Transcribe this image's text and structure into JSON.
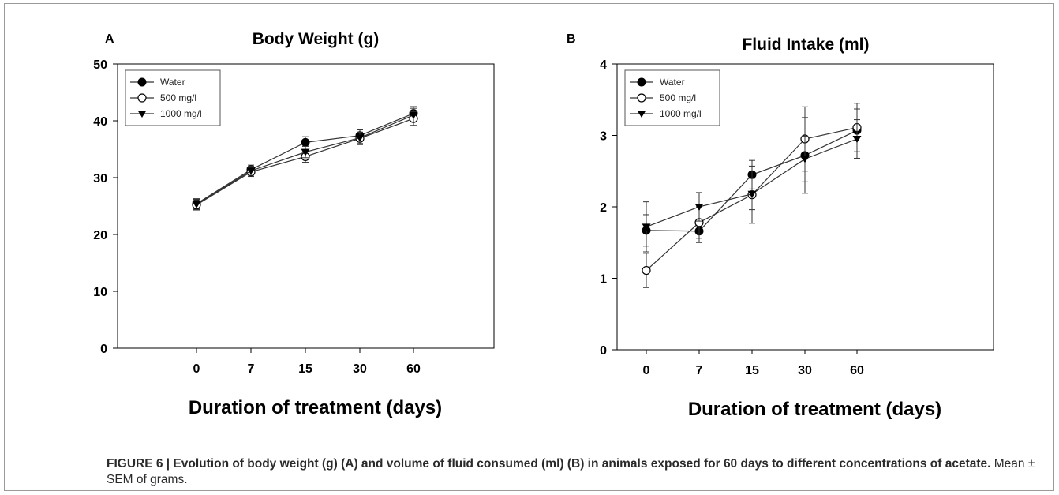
{
  "caption": {
    "bold": "FIGURE 6 | Evolution of body weight (g) (A) and volume of fluid consumed (ml) (B) in animals exposed for 60 days to different concentrations of acetate.",
    "plain": " Mean ± SEM of grams."
  },
  "chart_data": [
    {
      "type": "line",
      "panel_label": "A",
      "title": "Body Weight  (g)",
      "xlabel": "Duration of treatment (days)",
      "ylabel": "",
      "categories": [
        "0",
        "7",
        "15",
        "30",
        "60"
      ],
      "ylim": [
        0,
        50
      ],
      "yticks": [
        "0",
        "10",
        "20",
        "30",
        "40",
        "50"
      ],
      "grid": false,
      "legend_position": "top-left",
      "series": [
        {
          "name": "Water",
          "marker": "filled-circle",
          "values": [
            25.4,
            31.4,
            36.2,
            37.4,
            41.3
          ],
          "errors": [
            0.9,
            0.8,
            1.0,
            1.0,
            1.2
          ]
        },
        {
          "name": "500 mg/l",
          "marker": "open-circle",
          "values": [
            25.2,
            31.0,
            33.7,
            36.9,
            40.4
          ],
          "errors": [
            0.9,
            0.8,
            1.0,
            1.1,
            1.2
          ]
        },
        {
          "name": "1000 mg/l",
          "marker": "triangle-down",
          "values": [
            25.3,
            31.2,
            34.5,
            37.0,
            41.0
          ],
          "errors": [
            0.9,
            0.8,
            1.0,
            1.0,
            1.2
          ]
        }
      ]
    },
    {
      "type": "line",
      "panel_label": "B",
      "title": "Fluid Intake  (ml)",
      "xlabel": "Duration of treatment (days)",
      "ylabel": "",
      "categories": [
        "0",
        "7",
        "15",
        "30",
        "60"
      ],
      "ylim": [
        0,
        4
      ],
      "yticks": [
        "0",
        "1",
        "2",
        "3",
        "4"
      ],
      "grid": false,
      "legend_position": "top-left",
      "series": [
        {
          "name": "Water",
          "marker": "filled-circle",
          "values": [
            1.67,
            1.66,
            2.45,
            2.72,
            3.07
          ],
          "errors": [
            0.22,
            0.16,
            0.2,
            0.53,
            0.3
          ]
        },
        {
          "name": "500 mg/l",
          "marker": "open-circle",
          "values": [
            1.11,
            1.78,
            2.17,
            2.95,
            3.11
          ],
          "errors": [
            0.24,
            0.22,
            0.4,
            0.45,
            0.34
          ]
        },
        {
          "name": "1000 mg/l",
          "marker": "triangle-down",
          "values": [
            1.72,
            2.0,
            2.18,
            2.67,
            2.95
          ],
          "errors": [
            0.35,
            0.2,
            0.22,
            0.32,
            0.27
          ]
        }
      ]
    }
  ]
}
